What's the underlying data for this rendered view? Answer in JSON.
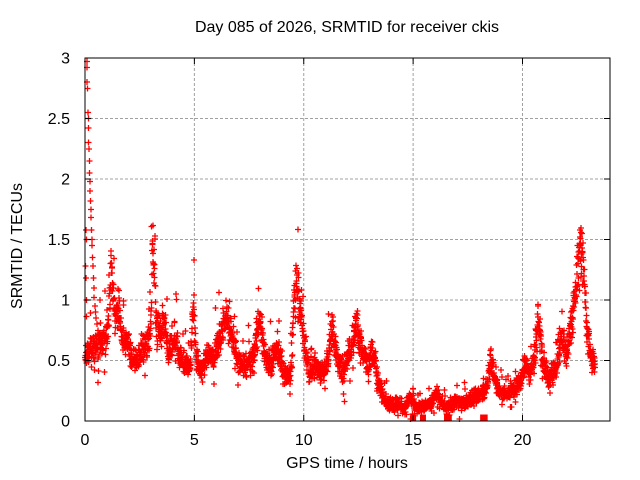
{
  "chart_data": {
    "type": "scatter",
    "title": "Day 085 of 2026, SRMTID for receiver ckis",
    "xlabel": "GPS time / hours",
    "ylabel": "SRMTID / TECUs",
    "xlim": [
      0,
      24
    ],
    "ylim": [
      0,
      3
    ],
    "xtick_values": [
      0,
      5,
      10,
      15,
      20
    ],
    "xtick_labels": [
      "0",
      "5",
      "10",
      "15",
      "20"
    ],
    "ytick_values": [
      0,
      0.5,
      1,
      1.5,
      2,
      2.5,
      3
    ],
    "ytick_labels": [
      "0",
      "0.5",
      "1",
      "1.5",
      "2",
      "2.5",
      "3"
    ],
    "grid": true,
    "legend": "none",
    "marker": "plus",
    "marker_color": "#ff0000",
    "marker_size_px": 7,
    "grid_color": "#a0a0a0",
    "border_color": "#000000",
    "sample_interval_hours": 0.0083333,
    "time_range_hours": [
      0.0,
      23.32
    ],
    "envelope_points": [
      [
        0.0,
        0.55
      ],
      [
        0.3,
        0.58
      ],
      [
        0.6,
        0.62
      ],
      [
        0.9,
        0.68
      ],
      [
        1.05,
        0.75
      ],
      [
        1.2,
        1.3
      ],
      [
        1.35,
        0.9
      ],
      [
        1.5,
        0.95
      ],
      [
        1.7,
        0.72
      ],
      [
        2.0,
        0.58
      ],
      [
        2.3,
        0.48
      ],
      [
        2.6,
        0.58
      ],
      [
        2.85,
        0.6
      ],
      [
        3.0,
        0.75
      ],
      [
        3.1,
        1.5
      ],
      [
        3.25,
        0.85
      ],
      [
        3.45,
        0.7
      ],
      [
        3.6,
        0.88
      ],
      [
        3.8,
        0.6
      ],
      [
        4.1,
        0.68
      ],
      [
        4.35,
        0.55
      ],
      [
        4.6,
        0.45
      ],
      [
        4.8,
        0.42
      ],
      [
        4.95,
        0.95
      ],
      [
        5.1,
        0.5
      ],
      [
        5.3,
        0.42
      ],
      [
        5.6,
        0.52
      ],
      [
        5.9,
        0.55
      ],
      [
        6.15,
        0.65
      ],
      [
        6.45,
        0.9
      ],
      [
        6.65,
        0.75
      ],
      [
        7.0,
        0.5
      ],
      [
        7.35,
        0.45
      ],
      [
        7.7,
        0.52
      ],
      [
        8.0,
        0.85
      ],
      [
        8.2,
        0.55
      ],
      [
        8.5,
        0.48
      ],
      [
        8.8,
        0.6
      ],
      [
        9.1,
        0.4
      ],
      [
        9.4,
        0.38
      ],
      [
        9.65,
        1.25
      ],
      [
        9.8,
        0.95
      ],
      [
        10.0,
        0.7
      ],
      [
        10.25,
        0.38
      ],
      [
        10.55,
        0.45
      ],
      [
        10.85,
        0.4
      ],
      [
        11.1,
        0.5
      ],
      [
        11.3,
        0.75
      ],
      [
        11.55,
        0.5
      ],
      [
        11.8,
        0.42
      ],
      [
        12.1,
        0.55
      ],
      [
        12.4,
        0.8
      ],
      [
        12.6,
        0.62
      ],
      [
        12.9,
        0.45
      ],
      [
        13.15,
        0.6
      ],
      [
        13.4,
        0.32
      ],
      [
        13.7,
        0.18
      ],
      [
        14.0,
        0.12
      ],
      [
        14.3,
        0.15
      ],
      [
        14.55,
        0.1
      ],
      [
        14.9,
        0.2
      ],
      [
        15.2,
        0.1
      ],
      [
        15.5,
        0.12
      ],
      [
        15.8,
        0.14
      ],
      [
        16.05,
        0.24
      ],
      [
        16.35,
        0.12
      ],
      [
        16.6,
        0.13
      ],
      [
        16.9,
        0.16
      ],
      [
        17.2,
        0.14
      ],
      [
        17.5,
        0.17
      ],
      [
        17.8,
        0.2
      ],
      [
        18.1,
        0.22
      ],
      [
        18.35,
        0.28
      ],
      [
        18.55,
        0.48
      ],
      [
        18.8,
        0.3
      ],
      [
        19.1,
        0.22
      ],
      [
        19.4,
        0.24
      ],
      [
        19.7,
        0.28
      ],
      [
        19.95,
        0.35
      ],
      [
        20.1,
        0.5
      ],
      [
        20.3,
        0.38
      ],
      [
        20.55,
        0.5
      ],
      [
        20.7,
        0.9
      ],
      [
        20.9,
        0.5
      ],
      [
        21.2,
        0.35
      ],
      [
        21.5,
        0.42
      ],
      [
        21.8,
        0.75
      ],
      [
        22.0,
        0.55
      ],
      [
        22.2,
        0.75
      ],
      [
        22.45,
        1.1
      ],
      [
        22.65,
        1.5
      ],
      [
        22.8,
        1.25
      ],
      [
        22.95,
        0.8
      ],
      [
        23.1,
        0.55
      ],
      [
        23.32,
        0.45
      ]
    ],
    "startup_burst_points": [
      [
        0.08,
        2.97
      ],
      [
        0.1,
        2.92
      ],
      [
        0.1,
        2.8
      ],
      [
        0.12,
        2.75
      ],
      [
        0.13,
        2.55
      ],
      [
        0.15,
        2.5
      ],
      [
        0.15,
        2.42
      ],
      [
        0.17,
        2.3
      ],
      [
        0.18,
        2.25
      ],
      [
        0.2,
        2.15
      ],
      [
        0.2,
        2.05
      ],
      [
        0.22,
        1.98
      ],
      [
        0.23,
        1.9
      ],
      [
        0.25,
        1.82
      ],
      [
        0.27,
        1.75
      ],
      [
        0.28,
        1.68
      ],
      [
        0.05,
        1.58
      ],
      [
        0.07,
        1.5
      ],
      [
        0.3,
        1.58
      ],
      [
        0.32,
        1.5
      ],
      [
        0.33,
        1.45
      ],
      [
        0.35,
        1.35
      ],
      [
        0.37,
        1.28
      ],
      [
        0.38,
        1.18
      ],
      [
        0.4,
        1.1
      ],
      [
        0.42,
        1.02
      ],
      [
        0.45,
        0.95
      ],
      [
        0.48,
        0.9
      ],
      [
        0.5,
        0.85
      ],
      [
        0.55,
        0.8
      ],
      [
        0.6,
        0.75
      ],
      [
        0.65,
        0.7
      ],
      [
        0.7,
        0.68
      ],
      [
        0.03,
        1.28
      ],
      [
        0.04,
        1.18
      ],
      [
        0.06,
        1.0
      ]
    ],
    "zero_marker_hours": [
      15.0,
      15.45,
      16.55,
      16.63,
      18.2,
      18.27
    ],
    "noise": {
      "seed": 20260085,
      "base_spread": 0.04,
      "rel_spread": 0.24,
      "floor": 0.015
    }
  }
}
